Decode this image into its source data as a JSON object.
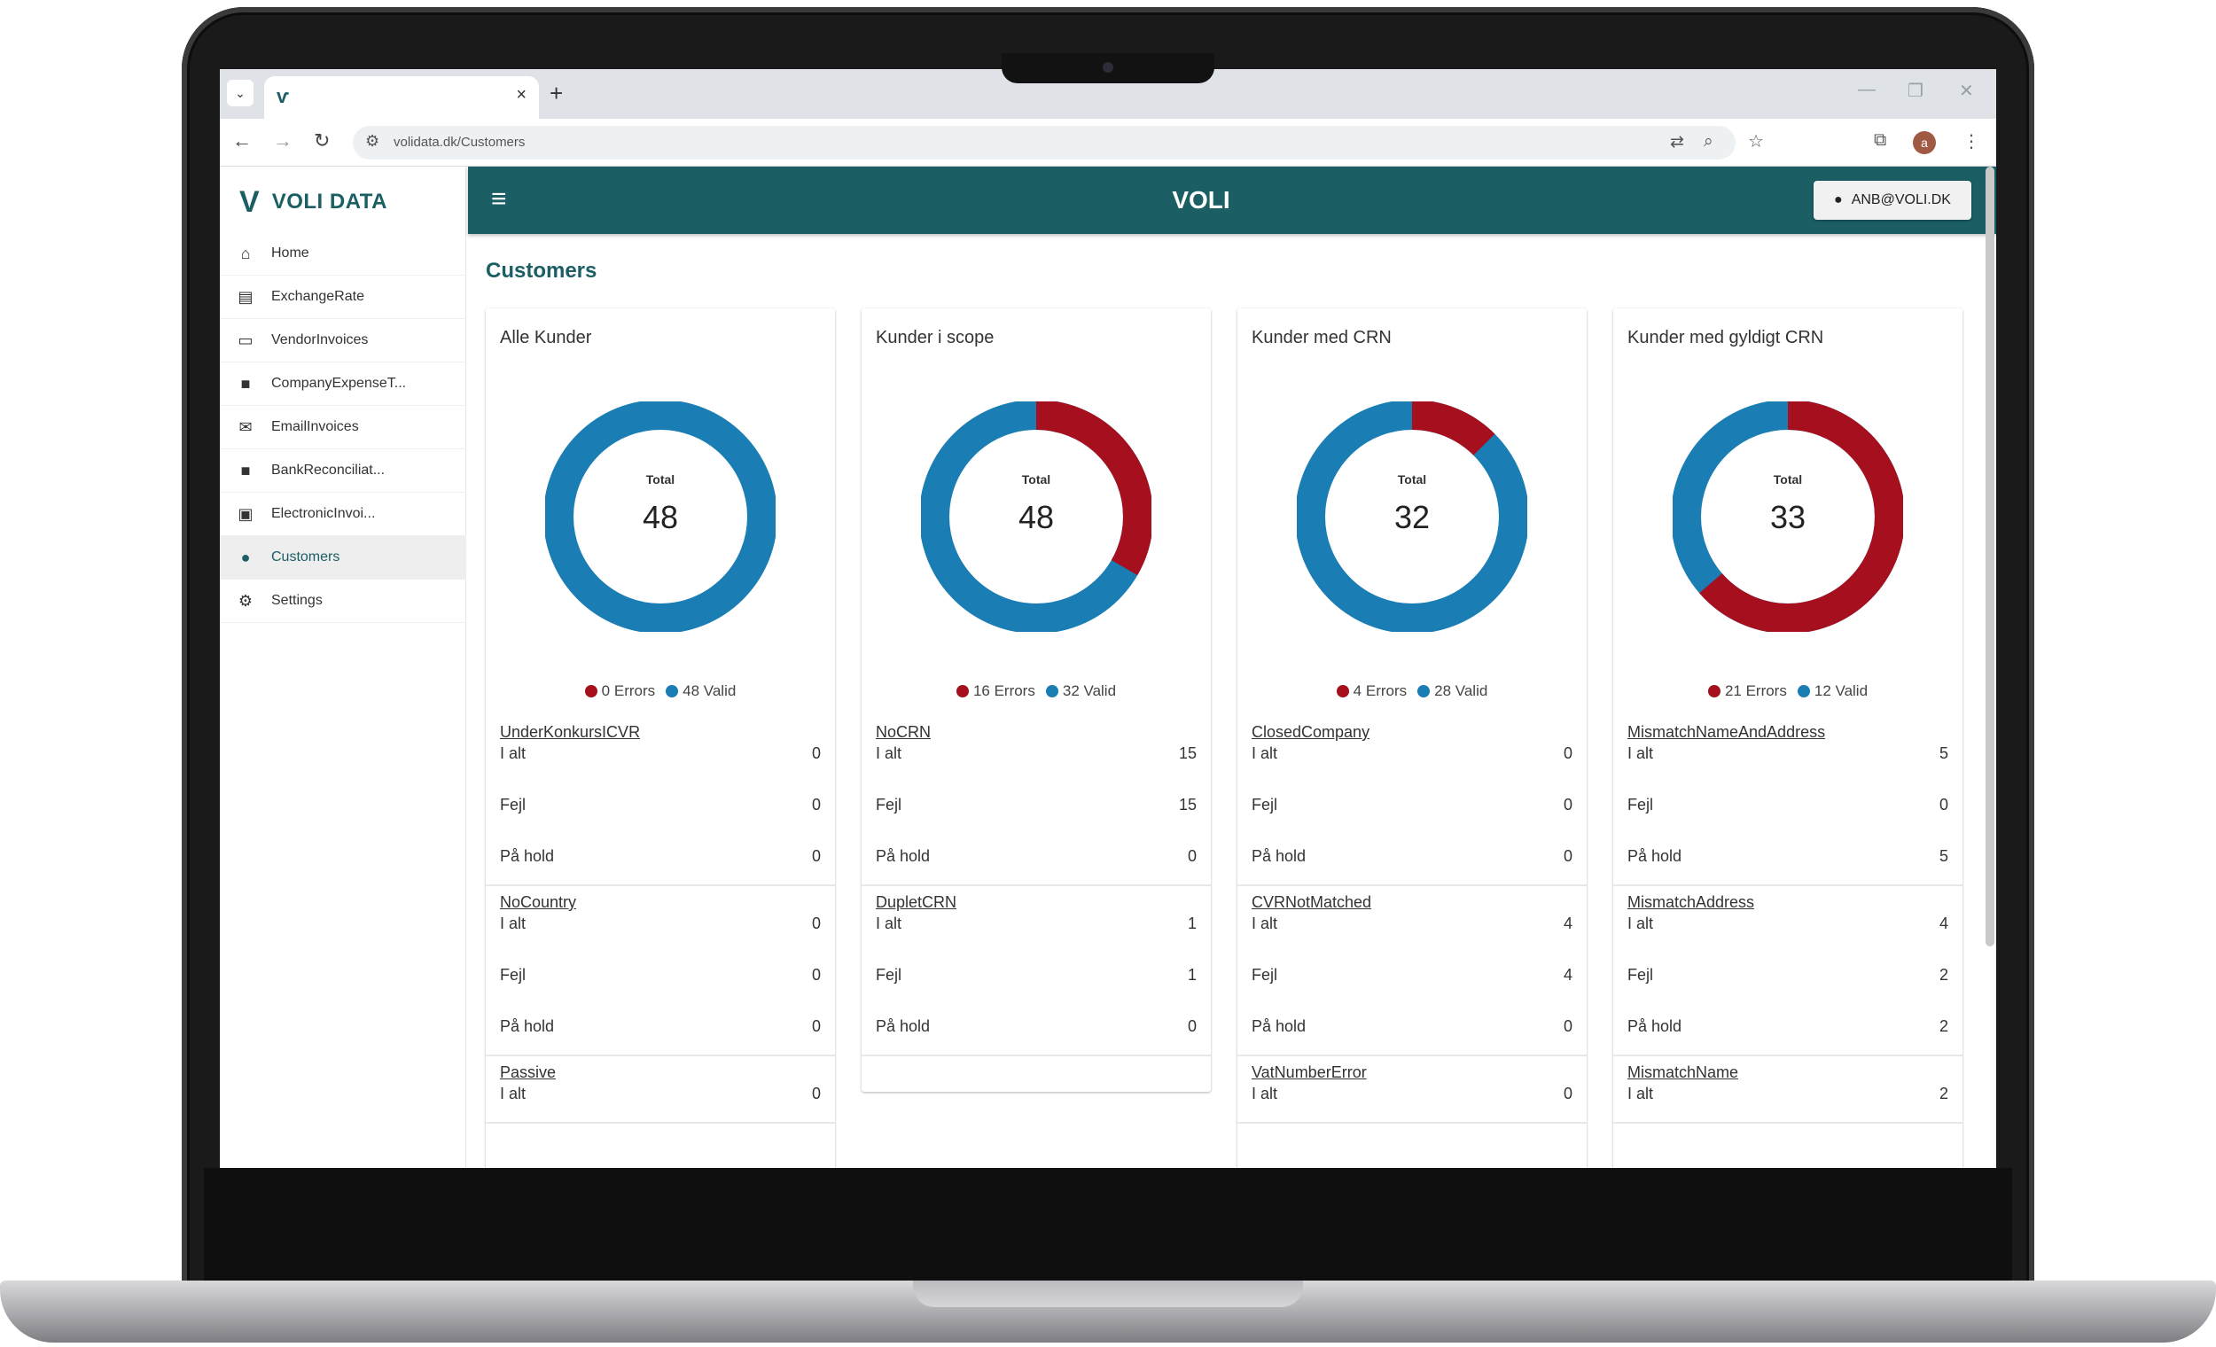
{
  "browser": {
    "url": "volidata.dk/Customers",
    "tab_close": "×",
    "new_tab": "+",
    "profile_initial": "a"
  },
  "sidebar": {
    "brand": "VOLI DATA",
    "items": [
      {
        "label": "Home",
        "icon": "home-icon"
      },
      {
        "label": "ExchangeRate",
        "icon": "exchange-icon"
      },
      {
        "label": "VendorInvoices",
        "icon": "credit-card-icon"
      },
      {
        "label": "CompanyExpenseT...",
        "icon": "folder-icon"
      },
      {
        "label": "EmailInvoices",
        "icon": "email-icon"
      },
      {
        "label": "BankReconciliat...",
        "icon": "folder-icon"
      },
      {
        "label": "ElectronicInvoi...",
        "icon": "receipt-icon"
      },
      {
        "label": "Customers",
        "icon": "person-icon",
        "active": true
      },
      {
        "label": "Settings",
        "icon": "gear-icon"
      }
    ]
  },
  "topbar": {
    "title": "VOLI",
    "user": "ANB@VOLI.DK"
  },
  "page": {
    "title": "Customers"
  },
  "colors": {
    "accent": "#1b5e64",
    "errors": "#a50f1e",
    "valid": "#1a7db3"
  },
  "cards": [
    {
      "title": "Alle Kunder",
      "total_label": "Total",
      "total": 48,
      "errors": 0,
      "valid": 48,
      "errors_label": "0 Errors",
      "valid_label": "48 Valid",
      "groups": [
        {
          "name": "UnderKonkursICVR",
          "rows": [
            {
              "label": "I alt",
              "value": "0"
            },
            {
              "label": "Fejl",
              "value": "0"
            },
            {
              "label": "På hold",
              "value": "0"
            }
          ]
        },
        {
          "name": "NoCountry",
          "rows": [
            {
              "label": "I alt",
              "value": "0"
            },
            {
              "label": "Fejl",
              "value": "0"
            },
            {
              "label": "På hold",
              "value": "0"
            }
          ]
        },
        {
          "name": "Passive",
          "rows": [
            {
              "label": "I alt",
              "value": "0"
            }
          ]
        }
      ]
    },
    {
      "title": "Kunder i scope",
      "total_label": "Total",
      "total": 48,
      "errors": 16,
      "valid": 32,
      "errors_label": "16 Errors",
      "valid_label": "32 Valid",
      "groups": [
        {
          "name": "NoCRN",
          "rows": [
            {
              "label": "I alt",
              "value": "15"
            },
            {
              "label": "Fejl",
              "value": "15"
            },
            {
              "label": "På hold",
              "value": "0"
            }
          ]
        },
        {
          "name": "DupletCRN",
          "rows": [
            {
              "label": "I alt",
              "value": "1"
            },
            {
              "label": "Fejl",
              "value": "1"
            },
            {
              "label": "På hold",
              "value": "0"
            }
          ]
        }
      ]
    },
    {
      "title": "Kunder med CRN",
      "total_label": "Total",
      "total": 32,
      "errors": 4,
      "valid": 28,
      "errors_label": "4 Errors",
      "valid_label": "28 Valid",
      "groups": [
        {
          "name": "ClosedCompany",
          "rows": [
            {
              "label": "I alt",
              "value": "0"
            },
            {
              "label": "Fejl",
              "value": "0"
            },
            {
              "label": "På hold",
              "value": "0"
            }
          ]
        },
        {
          "name": "CVRNotMatched",
          "rows": [
            {
              "label": "I alt",
              "value": "4"
            },
            {
              "label": "Fejl",
              "value": "4"
            },
            {
              "label": "På hold",
              "value": "0"
            }
          ]
        },
        {
          "name": "VatNumberError",
          "rows": [
            {
              "label": "I alt",
              "value": "0"
            }
          ]
        }
      ]
    },
    {
      "title": "Kunder med gyldigt CRN",
      "total_label": "Total",
      "total": 33,
      "errors": 21,
      "valid": 12,
      "errors_label": "21 Errors",
      "valid_label": "12 Valid",
      "groups": [
        {
          "name": "MismatchNameAndAddress",
          "rows": [
            {
              "label": "I alt",
              "value": "5"
            },
            {
              "label": "Fejl",
              "value": "0"
            },
            {
              "label": "På hold",
              "value": "5"
            }
          ]
        },
        {
          "name": "MismatchAddress",
          "rows": [
            {
              "label": "I alt",
              "value": "4"
            },
            {
              "label": "Fejl",
              "value": "2"
            },
            {
              "label": "På hold",
              "value": "2"
            }
          ]
        },
        {
          "name": "MismatchName",
          "rows": [
            {
              "label": "I alt",
              "value": "2"
            }
          ]
        }
      ]
    }
  ]
}
